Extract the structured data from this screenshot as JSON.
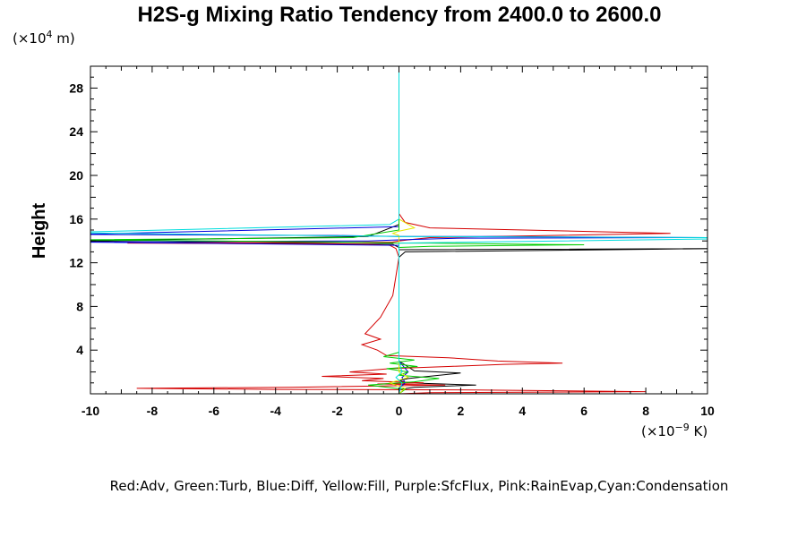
{
  "chart_data": {
    "type": "line",
    "title": "H2S-g Mixing Ratio Tendency from 2400.0 to 2600.0",
    "ylabel": "Height",
    "y_unit_prefix": "(×10",
    "y_unit_exp": "4",
    "y_unit_suffix": " m)",
    "x_unit_prefix": "(×10",
    "x_unit_exp": "−9",
    "x_unit_suffix": " K)",
    "xlim": [
      -10,
      10
    ],
    "ylim": [
      0,
      30
    ],
    "x_ticks": [
      -10,
      -8,
      -6,
      -4,
      -2,
      0,
      2,
      4,
      6,
      8,
      10
    ],
    "y_ticks": [
      4,
      8,
      12,
      16,
      20,
      24,
      28
    ],
    "legend_text": "Red:Adv, Green:Turb, Blue:Diff, Yellow:Fill, Purple:SfcFlux, Pink:RainEvap,Cyan:Condensation",
    "series_colors": {
      "adv": "#d40000",
      "turb": "#00cc00",
      "diff": "#0000dd",
      "fill": "#e6e600",
      "cond": "#00dddd",
      "black": "#000000"
    },
    "series": [
      {
        "key": "black",
        "x": [
          0,
          0,
          -1,
          -10.5,
          -0.2,
          0,
          0,
          10.5,
          0.2,
          0,
          0,
          0.5,
          2,
          0.3,
          0,
          0.3,
          2.5,
          0.5,
          0,
          0
        ],
        "y": [
          30,
          15.5,
          14.4,
          14,
          13.7,
          13.4,
          13.2,
          13.3,
          13,
          12.5,
          3,
          2.1,
          1.9,
          1.4,
          1.2,
          1,
          0.8,
          0.6,
          0.4,
          0
        ]
      },
      {
        "key": "adv",
        "x": [
          0,
          0,
          0.2,
          1,
          8.8,
          1,
          0.3,
          0,
          -0.2,
          -8.8,
          -1,
          -0.3,
          -0.1,
          0,
          -0.2,
          -0.6,
          -1.1,
          -0.6,
          -1.2,
          -0.7,
          -0.4,
          1.6,
          3.2,
          5.3,
          3.4,
          1.6,
          -0.3,
          -1.6,
          -0.4,
          -2.5,
          -0.5,
          -1.2,
          0.8,
          -0.7,
          1.5,
          -3.5,
          -8.5,
          -4,
          2.5,
          8,
          1,
          0
        ],
        "y": [
          30,
          16.5,
          15.7,
          15.2,
          14.7,
          14.3,
          14.1,
          14,
          13.9,
          13.8,
          13.7,
          13.6,
          13.3,
          12.5,
          9,
          7,
          5.5,
          5,
          4.5,
          4,
          3.5,
          3.3,
          3,
          2.8,
          2.7,
          2.5,
          2.3,
          2,
          1.8,
          1.6,
          1.4,
          1.2,
          1,
          0.9,
          0.8,
          0.6,
          0.5,
          0.4,
          0.35,
          0.2,
          0.1,
          0
        ]
      },
      {
        "key": "diff",
        "x": [
          0,
          0,
          -10.5,
          -2,
          0,
          3,
          10,
          2,
          0,
          -1,
          -10.5,
          0,
          0,
          0.3,
          0.1,
          0.2,
          0,
          0
        ],
        "y": [
          30,
          15.3,
          14.6,
          14.5,
          14.4,
          14.4,
          14.3,
          14.25,
          14.1,
          14,
          13.9,
          13.6,
          3,
          2,
          1.5,
          1,
          0.5,
          0
        ]
      },
      {
        "key": "turb",
        "x": [
          0,
          0,
          -1.5,
          -10.5,
          -2,
          0,
          1,
          4,
          6,
          4,
          1,
          0,
          0,
          -0.5,
          0.5,
          -0.3,
          0.6,
          -0.4,
          0.3,
          0,
          1.3,
          0.5,
          -1,
          0.2,
          0
        ],
        "y": [
          30,
          15,
          14.3,
          14.1,
          13.9,
          13.8,
          13.8,
          13.7,
          13.65,
          13.6,
          13.5,
          13.4,
          3.8,
          3.4,
          3.1,
          2.8,
          2.5,
          2.3,
          2,
          1.7,
          1.4,
          1.1,
          0.8,
          0.4,
          0
        ]
      },
      {
        "key": "fill",
        "x": [
          0,
          0,
          0.5,
          0,
          -0.2,
          0,
          0,
          0.3,
          -0.3,
          0.2,
          0
        ],
        "y": [
          30,
          16,
          15.2,
          14.9,
          14.7,
          14.5,
          2,
          1.5,
          1,
          0.5,
          0
        ]
      },
      {
        "key": "cond",
        "x": [
          0,
          0,
          -0.3,
          -10.5,
          -10.5,
          0,
          10.5,
          10.5,
          0,
          0,
          0.1,
          -0.1,
          0.1,
          0
        ],
        "y": [
          30,
          16,
          15.5,
          14.8,
          14.75,
          14.4,
          14.3,
          14.2,
          13.8,
          3,
          2,
          1.5,
          1,
          0
        ]
      }
    ]
  }
}
